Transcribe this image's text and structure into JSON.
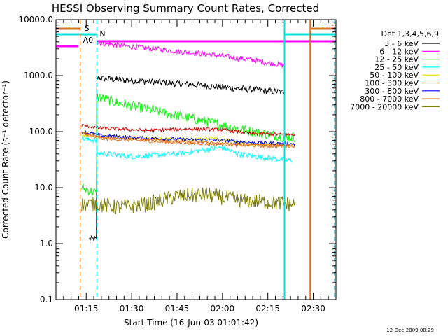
{
  "chart_data": {
    "type": "line",
    "title": "HESSI Observing Summary Count Rates, Corrected",
    "xlabel": "Start Time (16-Jun-03 01:01:42)",
    "ylabel": "Corrected Count Rate (s⁻¹ detector⁻¹)",
    "y_scale": "log",
    "ylim": [
      0.1,
      10000
    ],
    "xlim": [
      "01:05:00",
      "02:37:30"
    ],
    "y_tick_labels": [
      "0.1",
      "1.0",
      "10.0",
      "100.0",
      "1000.0",
      "10000.0"
    ],
    "x_tick_labels": [
      "01:15",
      "01:30",
      "01:45",
      "02:00",
      "02:15",
      "02:30"
    ],
    "legend_title": "Det 1,3,4,5,6,9",
    "legend_position": "right",
    "timestamp": "12-Dec-2009 08:29",
    "flags": [
      {
        "label": "S",
        "color": "#e07020"
      },
      {
        "label": "N",
        "color": "#00e0e0"
      },
      {
        "label": "A0",
        "color": "#ff00ff"
      }
    ],
    "attenuator_level": 3000,
    "vertical_markers": [
      {
        "time": "01:13:00",
        "color": "#e07020",
        "style": "dashed"
      },
      {
        "time": "01:18:30",
        "color": "#00e0e0",
        "style": "dashed"
      },
      {
        "time": "02:20:30",
        "color": "#00e0e0",
        "style": "solid"
      },
      {
        "time": "02:29:00",
        "color": "#e07020",
        "style": "solid"
      },
      {
        "time": "02:37:00",
        "color": "#00e0e0",
        "style": "dashed"
      }
    ],
    "series": [
      {
        "name": "3 - 6 keV",
        "color": "#000000",
        "noise": 0.06,
        "points": [
          [
            "01:16:00",
            1.2
          ],
          [
            "01:18:20",
            1.2
          ],
          [
            "01:18:30",
            900
          ],
          [
            "01:25:00",
            850
          ],
          [
            "01:45:00",
            720
          ],
          [
            "02:00:00",
            620
          ],
          [
            "02:10:00",
            560
          ],
          [
            "02:20:30",
            500
          ]
        ]
      },
      {
        "name": "6 - 12 keV",
        "color": "#ff00ff",
        "noise": 0.05,
        "points": [
          [
            "01:18:30",
            3900
          ],
          [
            "01:25:00",
            3500
          ],
          [
            "01:40:00",
            2900
          ],
          [
            "01:55:00",
            2400
          ],
          [
            "02:10:00",
            1900
          ],
          [
            "02:20:30",
            1500
          ]
        ]
      },
      {
        "name": "12 - 25 keV",
        "color": "#00ff00",
        "noise": 0.09,
        "points": [
          [
            "01:13:30",
            10
          ],
          [
            "01:18:20",
            8
          ],
          [
            "01:18:30",
            420
          ],
          [
            "01:25:00",
            330
          ],
          [
            "01:40:00",
            220
          ],
          [
            "01:55:00",
            150
          ],
          [
            "02:10:00",
            100
          ],
          [
            "02:20:30",
            80
          ],
          [
            "02:24:00",
            80
          ]
        ]
      },
      {
        "name": "25 - 50 keV",
        "color": "#00ffff",
        "noise": 0.05,
        "points": [
          [
            "01:13:30",
            75
          ],
          [
            "01:18:20",
            70
          ],
          [
            "01:18:30",
            42
          ],
          [
            "01:30:00",
            36
          ],
          [
            "01:45:00",
            40
          ],
          [
            "01:55:00",
            48
          ],
          [
            "02:00:00",
            52
          ],
          [
            "02:05:00",
            40
          ],
          [
            "02:15:00",
            34
          ],
          [
            "02:23:00",
            30
          ]
        ]
      },
      {
        "name": "50 - 100 keV",
        "color": "#e0e000",
        "noise": 0.03,
        "points": [
          [
            "01:13:30",
            85
          ],
          [
            "01:20:00",
            82
          ],
          [
            "01:35:00",
            76
          ],
          [
            "01:50:00",
            72
          ],
          [
            "01:58:00",
            78
          ],
          [
            "02:05:00",
            62
          ],
          [
            "02:15:00",
            58
          ],
          [
            "02:24:00",
            58
          ]
        ]
      },
      {
        "name": "100 - 300 keV",
        "color": "#e07020",
        "noise": 0.03,
        "points": [
          [
            "01:13:30",
            92
          ],
          [
            "01:20:00",
            75
          ],
          [
            "01:35:00",
            68
          ],
          [
            "01:50:00",
            62
          ],
          [
            "02:05:00",
            58
          ],
          [
            "02:15:00",
            55
          ],
          [
            "02:24:00",
            55
          ]
        ]
      },
      {
        "name": "300 - 800 keV",
        "color": "#0000ff",
        "noise": 0.03,
        "points": [
          [
            "01:13:30",
            100
          ],
          [
            "01:20:00",
            85
          ],
          [
            "01:35:00",
            76
          ],
          [
            "01:50:00",
            72
          ],
          [
            "02:00:00",
            70
          ],
          [
            "02:10:00",
            64
          ],
          [
            "02:24:00",
            60
          ]
        ]
      },
      {
        "name": "800 - 7000 keV",
        "color": "#e07020",
        "noise": 0.02,
        "points": [
          [
            "01:13:30",
            96
          ],
          [
            "01:20:00",
            80
          ],
          [
            "01:35:00",
            72
          ],
          [
            "01:50:00",
            66
          ],
          [
            "02:05:00",
            60
          ],
          [
            "02:24:00",
            56
          ]
        ]
      },
      {
        "name": "7000 - 20000 keV",
        "color": "#808000",
        "noise": 0.14,
        "points": [
          [
            "01:13:30",
            5
          ],
          [
            "01:18:30",
            5
          ],
          [
            "01:25:00",
            4.5
          ],
          [
            "01:35:00",
            5
          ],
          [
            "01:45:00",
            7
          ],
          [
            "01:55:00",
            7.5
          ],
          [
            "02:05:00",
            6
          ],
          [
            "02:15:00",
            5.5
          ],
          [
            "02:24:00",
            5
          ]
        ]
      },
      {
        "name": "",
        "color": "#cc0000",
        "noise": 0.03,
        "points": [
          [
            "01:13:30",
            130
          ],
          [
            "01:20:00",
            115
          ],
          [
            "01:35:00",
            105
          ],
          [
            "01:50:00",
            112
          ],
          [
            "02:00:00",
            108
          ],
          [
            "02:10:00",
            92
          ],
          [
            "02:24:00",
            88
          ]
        ]
      }
    ]
  }
}
